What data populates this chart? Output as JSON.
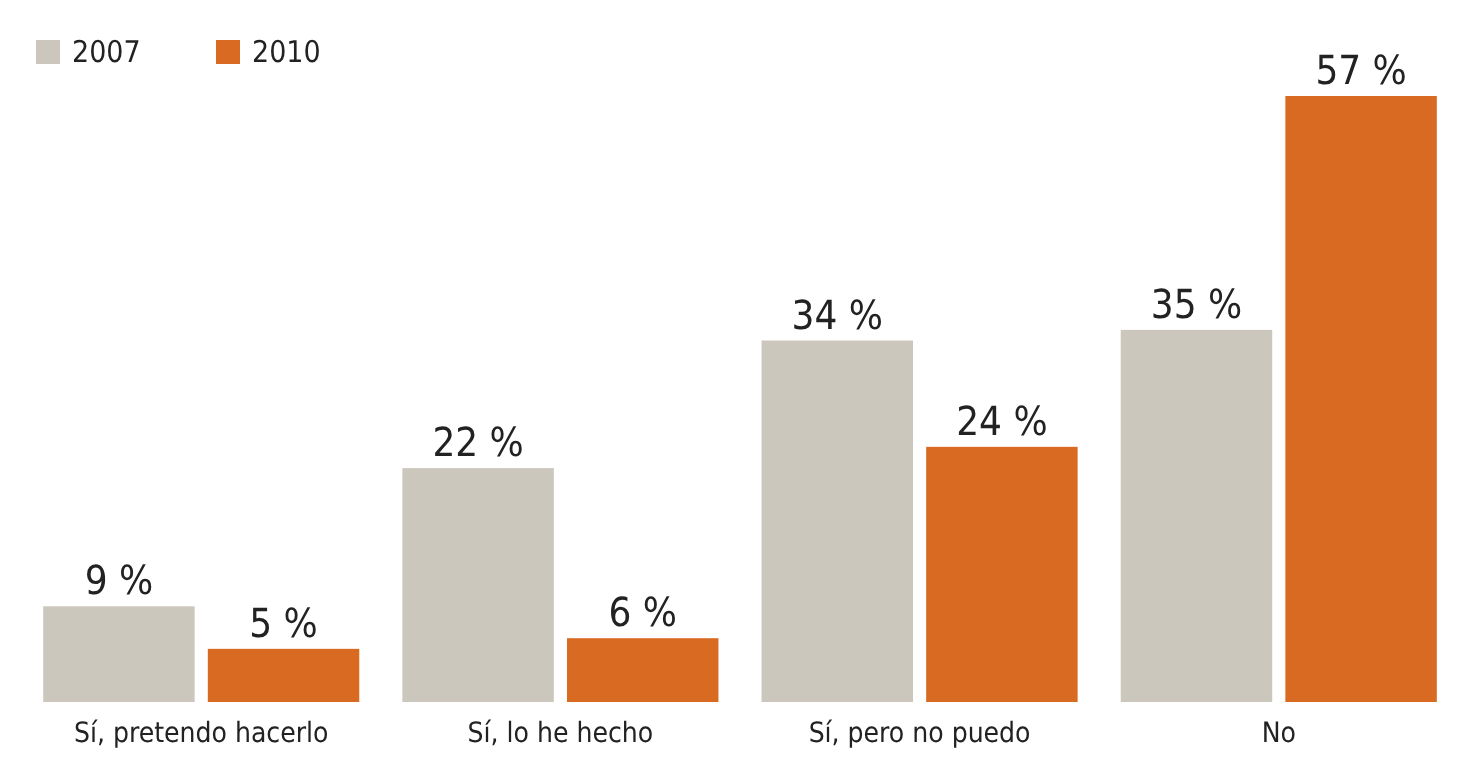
{
  "chart_data": {
    "type": "bar",
    "categories": [
      "Sí, pretendo hacerlo",
      "Sí, lo he hecho",
      "Sí, pero no puedo",
      "No"
    ],
    "series": [
      {
        "name": "2007",
        "color": "#ccc7bc",
        "values": [
          9,
          22,
          34,
          35
        ],
        "value_labels": [
          "9 %",
          "22 %",
          "34 %",
          "35 %"
        ]
      },
      {
        "name": "2010",
        "color": "#d86a22",
        "values": [
          5,
          6,
          24,
          57
        ],
        "value_labels": [
          "5 %",
          "6 %",
          "24 %",
          "57 %"
        ]
      }
    ],
    "ylim": [
      0,
      57
    ],
    "tick_labels": "x",
    "legend": "top left",
    "grid": false
  }
}
